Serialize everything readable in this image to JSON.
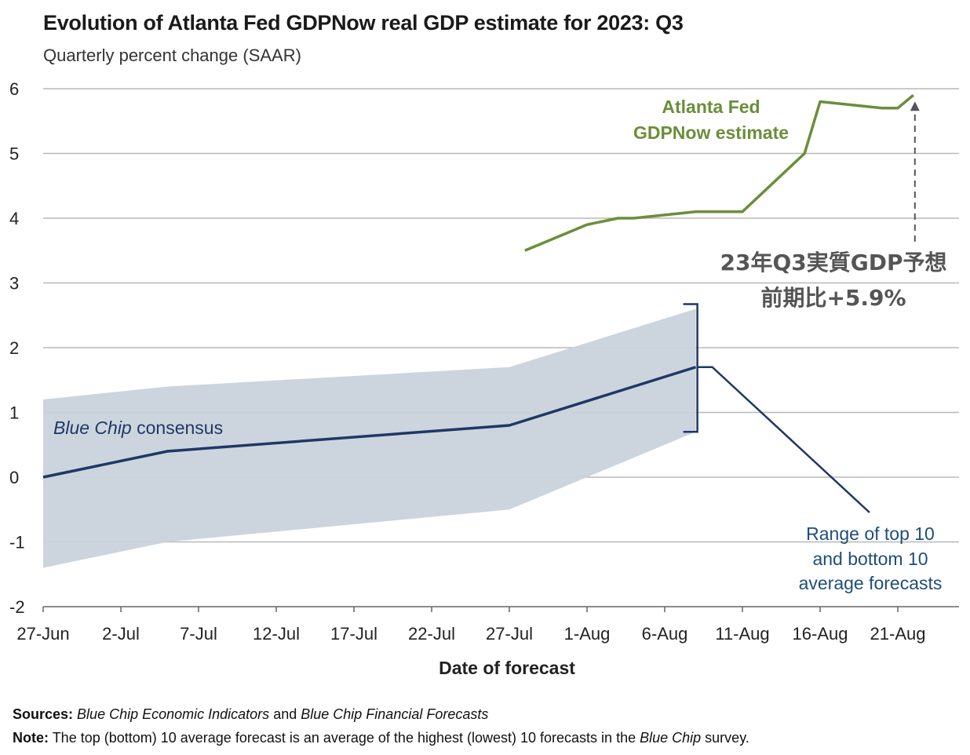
{
  "chart_data": {
    "type": "line",
    "title": "Evolution of Atlanta Fed GDPNow real GDP estimate for 2023: Q3",
    "subtitle": "Quarterly percent change (SAAR)",
    "xlabel": "Date of forecast",
    "ylabel": "",
    "ylim": [
      -2,
      6
    ],
    "yticks": [
      -2,
      -1,
      0,
      1,
      2,
      3,
      4,
      5,
      6
    ],
    "xticks": [
      "27-Jun",
      "2-Jul",
      "7-Jul",
      "12-Jul",
      "17-Jul",
      "22-Jul",
      "27-Jul",
      "1-Aug",
      "6-Aug",
      "11-Aug",
      "16-Aug",
      "21-Aug"
    ],
    "xtick_days": [
      0,
      5,
      10,
      15,
      20,
      25,
      30,
      35,
      40,
      45,
      50,
      55
    ],
    "grid": true,
    "series": [
      {
        "name": "Atlanta Fed GDPNow estimate",
        "color": "#6b8e3a",
        "x_days": [
          31,
          35,
          37,
          38,
          42,
          45,
          49,
          50,
          54,
          55,
          56
        ],
        "values": [
          3.5,
          3.9,
          4.0,
          4.0,
          4.1,
          4.1,
          5.0,
          5.8,
          5.7,
          5.7,
          5.9
        ]
      },
      {
        "name": "Blue Chip consensus",
        "color": "#1f3864",
        "x_days": [
          0,
          8,
          30,
          42
        ],
        "values": [
          0.0,
          0.4,
          0.8,
          1.7
        ]
      },
      {
        "name": "Range of top 10 and bottom 10 average forecasts",
        "type": "band",
        "color": "#c9d3dc",
        "x_days": [
          0,
          8,
          30,
          42
        ],
        "upper": [
          1.2,
          1.4,
          1.7,
          2.6
        ],
        "lower": [
          -1.4,
          -1.0,
          -0.5,
          0.7
        ]
      }
    ],
    "annotations": {
      "gdpnow_label": [
        "Atlanta Fed",
        "GDPNow estimate"
      ],
      "consensus_label": "consensus",
      "consensus_label_italic": "Blue Chip",
      "range_label": [
        "Range of top 10",
        "and bottom 10",
        "average forecasts"
      ],
      "jp_label": [
        "23年Q3実質GDP予想",
        "前期比+5.9%"
      ]
    }
  },
  "footnotes": {
    "sources_label": "Sources:",
    "sources_text_1": "Blue Chip Economic Indicators",
    "sources_and": "and",
    "sources_text_2": "Blue Chip Financial Forecasts",
    "note_label": "Note:",
    "note_text_1": "The top (bottom) 10 average forecast is an average of the highest (lowest) 10 forecasts in the",
    "note_italic": "Blue Chip",
    "note_text_2": "survey."
  }
}
